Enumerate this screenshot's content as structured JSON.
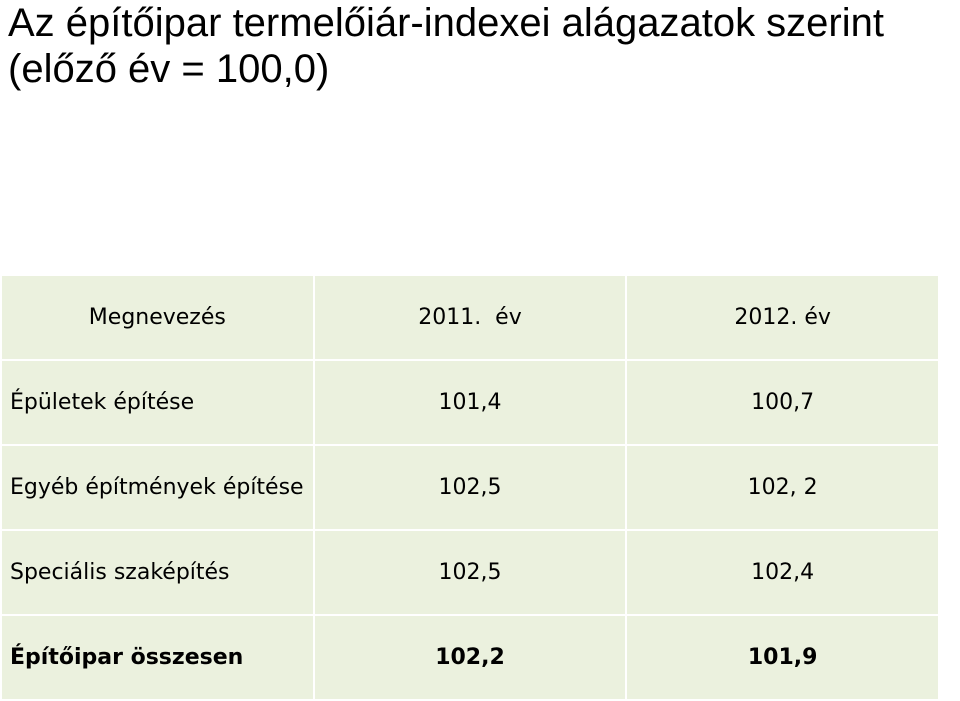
{
  "header": {
    "title": "Az építőipar termelőiár-indexei alágazatok szerint (előző év = 100,0)"
  },
  "table": {
    "columns": [
      "Megnevezés",
      "2011.  év",
      "2012. év"
    ],
    "rows": [
      [
        "Épületek építése",
        "101,4",
        "100,7"
      ],
      [
        "Egyéb építmények építése",
        "102,5",
        "102, 2"
      ],
      [
        "Speciális szaképítés",
        "102,5",
        "102,4"
      ],
      [
        "Építőipar összesen",
        "102,2",
        "101,9"
      ]
    ]
  }
}
